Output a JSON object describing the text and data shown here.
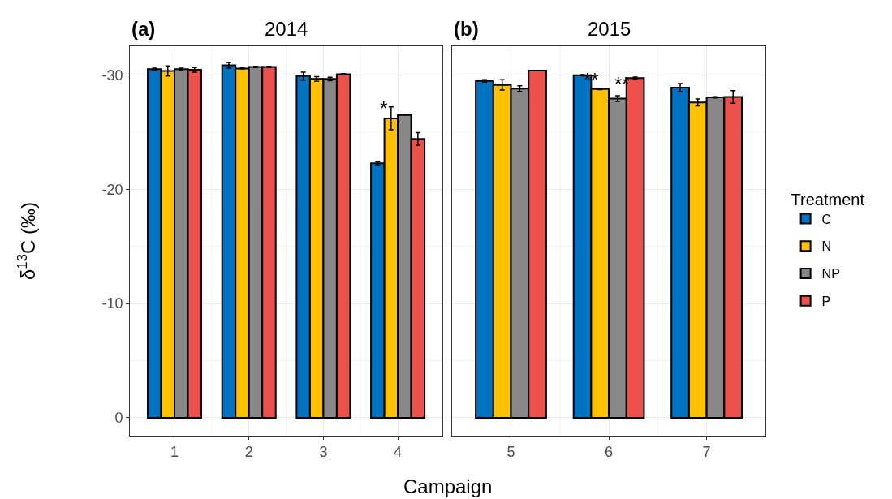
{
  "chart_data": [
    {
      "type": "bar",
      "title": "2014",
      "annotations": [
        "(a)",
        "*"
      ],
      "xlabel": "Campaign",
      "ylabel": "δ$^{13}$C (‰)",
      "legend_title": "Treatment",
      "legend": "right",
      "grid": true,
      "categories": [
        "1",
        "2",
        "3",
        "4"
      ],
      "ylim": [
        1.56,
        -32.5
      ],
      "yticks": [
        0,
        -10,
        -20,
        -30
      ],
      "series": [
        {
          "name": "C",
          "color": "#0072c2",
          "values": [
            -30.5,
            -30.85,
            -29.9,
            -22.27
          ],
          "errors": [
            0.1,
            0.25,
            0.35,
            0.15
          ]
        },
        {
          "name": "N",
          "color": "#ffc000",
          "values": [
            -30.35,
            -30.57,
            -29.65,
            -26.2
          ],
          "errors": [
            0.45,
            0.05,
            0.2,
            1.0
          ]
        },
        {
          "name": "NP",
          "color": "#888888",
          "values": [
            -30.5,
            -30.7,
            -29.65,
            -26.5
          ],
          "errors": [
            0.1,
            0.05,
            0.15,
            null
          ]
        },
        {
          "name": "P",
          "color": "#ec524b",
          "values": [
            -30.45,
            -30.7,
            -30.07,
            -24.4
          ],
          "errors": [
            0.2,
            0.05,
            0.05,
            0.55
          ]
        }
      ]
    },
    {
      "type": "bar",
      "title": "2015",
      "annotations": [
        "(b)",
        "**",
        "**"
      ],
      "grid": true,
      "tick_labels": "x",
      "categories": [
        "5",
        "6",
        "7"
      ],
      "ylim": [
        1.56,
        -32.5
      ],
      "yticks": [
        0,
        -10,
        -20,
        -30
      ],
      "series": [
        {
          "name": "C",
          "color": "#0072c2",
          "values": [
            -29.48,
            -29.98,
            -28.9
          ],
          "errors": [
            0.1,
            0.05,
            0.35
          ]
        },
        {
          "name": "N",
          "color": "#ffc000",
          "values": [
            -29.13,
            -28.77,
            -27.6
          ],
          "errors": [
            0.45,
            0.05,
            0.3
          ]
        },
        {
          "name": "NP",
          "color": "#888888",
          "values": [
            -28.8,
            -27.94,
            -28.04
          ],
          "errors": [
            0.25,
            0.25,
            0.05
          ]
        },
        {
          "name": "P",
          "color": "#ec524b",
          "values": [
            -30.38,
            -29.72,
            -28.08
          ],
          "errors": [
            null,
            0.1,
            0.55
          ]
        }
      ]
    }
  ]
}
